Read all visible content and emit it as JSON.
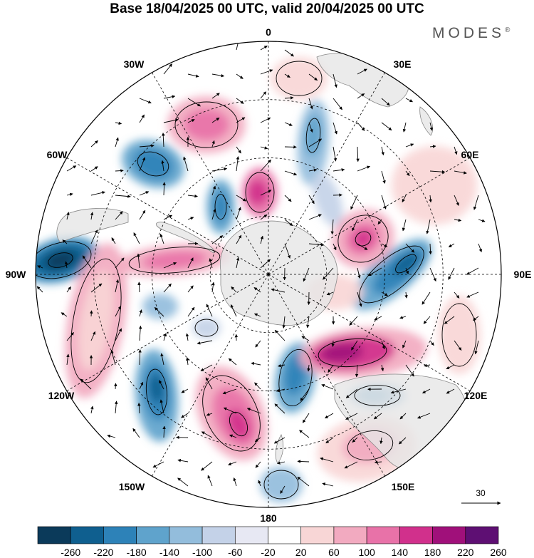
{
  "title": "Base 18/04/2025 00 UTC, valid 20/04/2025 00 UTC",
  "brand": "MODES",
  "brand_mark": "®",
  "lon_labels": [
    "0",
    "30E",
    "60E",
    "90E",
    "120E",
    "150E",
    "180",
    "150W",
    "120W",
    "90W",
    "60W",
    "30W"
  ],
  "vector_reference": {
    "value": "30"
  },
  "colorbar": {
    "labels": [
      "-260",
      "-220",
      "-180",
      "-140",
      "-100",
      "-60",
      "-20",
      "20",
      "60",
      "100",
      "140",
      "180",
      "220",
      "260"
    ],
    "colors": [
      "#0b3a5a",
      "#0f5f8f",
      "#2d82b8",
      "#5fa3cc",
      "#93bddc",
      "#c4d2e8",
      "#e7e8f3",
      "#ffffff",
      "#f8d6d6",
      "#f2aac0",
      "#e872a8",
      "#d1308c",
      "#a0107a",
      "#5e0f73"
    ]
  }
}
